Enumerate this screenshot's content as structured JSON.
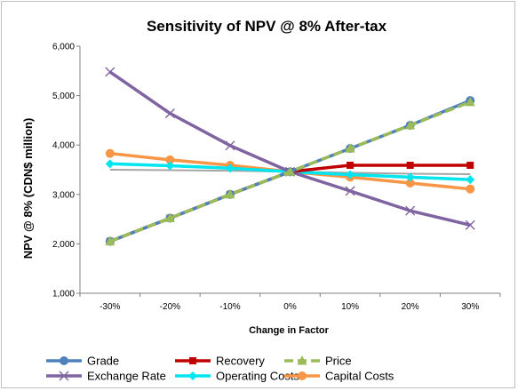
{
  "chart_data": {
    "type": "line",
    "title": "Sensitivity of NPV @ 8% After-tax",
    "xlabel": "Change in Factor",
    "ylabel": "NPV @ 8% (CDN$ million)",
    "categories": [
      "-30%",
      "-20%",
      "-10%",
      "0%",
      "10%",
      "20%",
      "30%"
    ],
    "ylim": [
      1000,
      6000
    ],
    "yticks": [
      "1,000",
      "2,000",
      "3,000",
      "4,000",
      "5,000",
      "6,000"
    ],
    "ytick_values": [
      1000,
      2000,
      3000,
      4000,
      5000,
      6000
    ],
    "grid": false,
    "legend_position": "bottom",
    "series": [
      {
        "name": "Grade",
        "values": [
          2050,
          2520,
          3000,
          3460,
          3930,
          4400,
          4900
        ],
        "color": "#4f81bd",
        "marker": "circle",
        "dashed": false
      },
      {
        "name": "Recovery",
        "values": [
          2050,
          2520,
          3000,
          3460,
          3590,
          3590,
          3590
        ],
        "color": "#c00000",
        "marker": "square",
        "dashed": false
      },
      {
        "name": "Price",
        "values": [
          2050,
          2520,
          3000,
          3460,
          3930,
          4400,
          4870
        ],
        "color": "#9bbb59",
        "marker": "triangle",
        "dashed": true
      },
      {
        "name": "Exchange Rate",
        "values": [
          5480,
          4640,
          3990,
          3460,
          3070,
          2670,
          2380
        ],
        "color": "#8064a2",
        "marker": "x",
        "dashed": false
      },
      {
        "name": "Operating Costs",
        "values": [
          3620,
          3580,
          3530,
          3460,
          3400,
          3350,
          3300
        ],
        "color": "#00e5ee",
        "marker": "diamond",
        "dashed": false
      },
      {
        "name": "Capital Costs",
        "values": [
          3830,
          3700,
          3590,
          3460,
          3350,
          3230,
          3110
        ],
        "color": "#f79646",
        "marker": "circle",
        "dashed": false
      },
      {
        "name": "",
        "values": [
          3500,
          3490,
          3480,
          3460,
          3440,
          3420,
          3410
        ],
        "color": "#a6a6a6",
        "marker": "none",
        "dashed": false
      }
    ]
  }
}
